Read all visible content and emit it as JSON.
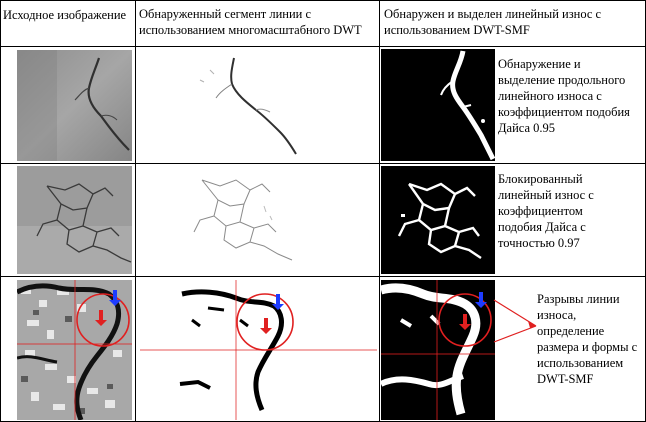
{
  "headers": {
    "col1": "Исходное изображение",
    "col2": "Обнаруженный сегмент линии с\nиспользованием многомасштабного DWT",
    "col3": "Обнаружен и выделен линейный износ с\nиспользованием DWT-SMF"
  },
  "rows": [
    {
      "caption": "Обнаружение и\nвыделение продольного\nлинейного износа с\nкоэффициентом подобия\nДайса 0.95"
    },
    {
      "caption": "Блокированный\nлинейный износ с\nкоэффициентом\nподобия Дайса с\nточностью 0.97"
    },
    {
      "caption": "Разрывы линии\nизноса, определение\nразмера и формы с\nиспользованием\nDWT-SMF"
    }
  ],
  "colors": {
    "marker_red": "#e02020",
    "marker_blue": "#1e3cff"
  }
}
